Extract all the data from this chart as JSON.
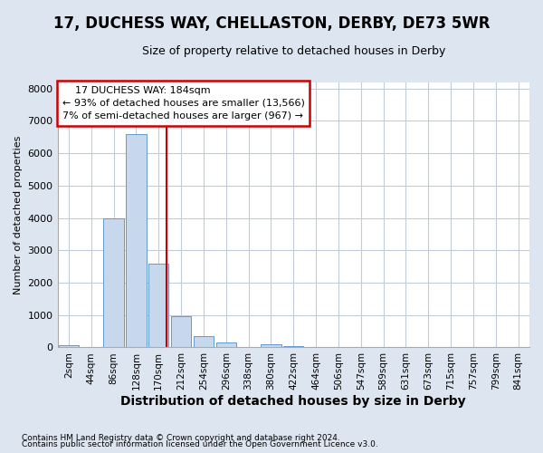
{
  "title": "17, DUCHESS WAY, CHELLASTON, DERBY, DE73 5WR",
  "subtitle": "Size of property relative to detached houses in Derby",
  "xlabel": "Distribution of detached houses by size in Derby",
  "ylabel": "Number of detached properties",
  "bin_labels": [
    "2sqm",
    "44sqm",
    "86sqm",
    "128sqm",
    "170sqm",
    "212sqm",
    "254sqm",
    "296sqm",
    "338sqm",
    "380sqm",
    "422sqm",
    "464sqm",
    "506sqm",
    "547sqm",
    "589sqm",
    "631sqm",
    "673sqm",
    "715sqm",
    "757sqm",
    "799sqm",
    "841sqm"
  ],
  "bar_values": [
    60,
    0,
    3980,
    6600,
    2600,
    970,
    340,
    150,
    0,
    100,
    50,
    0,
    0,
    0,
    0,
    0,
    0,
    0,
    0,
    0,
    0
  ],
  "bar_color": "#c8d8ec",
  "bar_edgecolor": "#6699cc",
  "property_label": "17 DUCHESS WAY: 184sqm",
  "annotation_line1": "← 93% of detached houses are smaller (13,566)",
  "annotation_line2": "7% of semi-detached houses are larger (967) →",
  "vline_color": "#cc0000",
  "annotation_box_edgecolor": "#cc0000",
  "ylim": [
    0,
    8200
  ],
  "yticks": [
    0,
    1000,
    2000,
    3000,
    4000,
    5000,
    6000,
    7000,
    8000
  ],
  "footer1": "Contains HM Land Registry data © Crown copyright and database right 2024.",
  "footer2": "Contains public sector information licensed under the Open Government Licence v3.0.",
  "fig_facecolor": "#dde6f0",
  "plot_facecolor": "#ffffff",
  "grid_color": "#c0ccd8",
  "title_fontsize": 12,
  "subtitle_fontsize": 9,
  "xlabel_fontsize": 10,
  "ylabel_fontsize": 8
}
